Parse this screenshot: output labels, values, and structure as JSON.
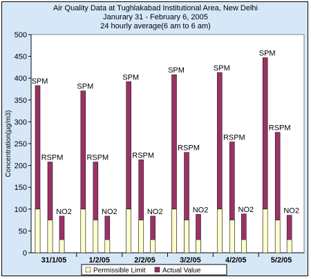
{
  "chart_data": {
    "type": "bar",
    "title": [
      "Air Quality Data at Tughlakabad Institutional Area, New Delhi",
      "Janurary 31 - February 6, 2005",
      "24 hourly average(6 am to 6 am)"
    ],
    "ylabel": "Concentration(µg/m3)",
    "xlabel": "",
    "ylim": [
      0,
      500
    ],
    "yticks": [
      0,
      50,
      100,
      150,
      200,
      250,
      300,
      350,
      400,
      450,
      500
    ],
    "grid": false,
    "legend_position": "bottom",
    "categories": [
      "31/1/05",
      "1/2/05",
      "2/2/05",
      "3/2/05",
      "4/2/05",
      "5/2/05"
    ],
    "pollutants": [
      "SPM",
      "RSPM",
      "NO2"
    ],
    "series": [
      {
        "name": "Permissible Limit",
        "color": "#ffffcc",
        "values": [
          [
            100,
            75,
            30
          ],
          [
            100,
            75,
            30
          ],
          [
            100,
            75,
            30
          ],
          [
            100,
            75,
            30
          ],
          [
            100,
            75,
            30
          ],
          [
            100,
            75,
            30
          ]
        ]
      },
      {
        "name": "Actual Value",
        "color": "#993366",
        "values": [
          [
            383,
            208,
            84
          ],
          [
            371,
            208,
            84
          ],
          [
            392,
            213,
            84
          ],
          [
            408,
            230,
            88
          ],
          [
            413,
            254,
            89
          ],
          [
            447,
            276,
            86
          ]
        ]
      }
    ]
  }
}
